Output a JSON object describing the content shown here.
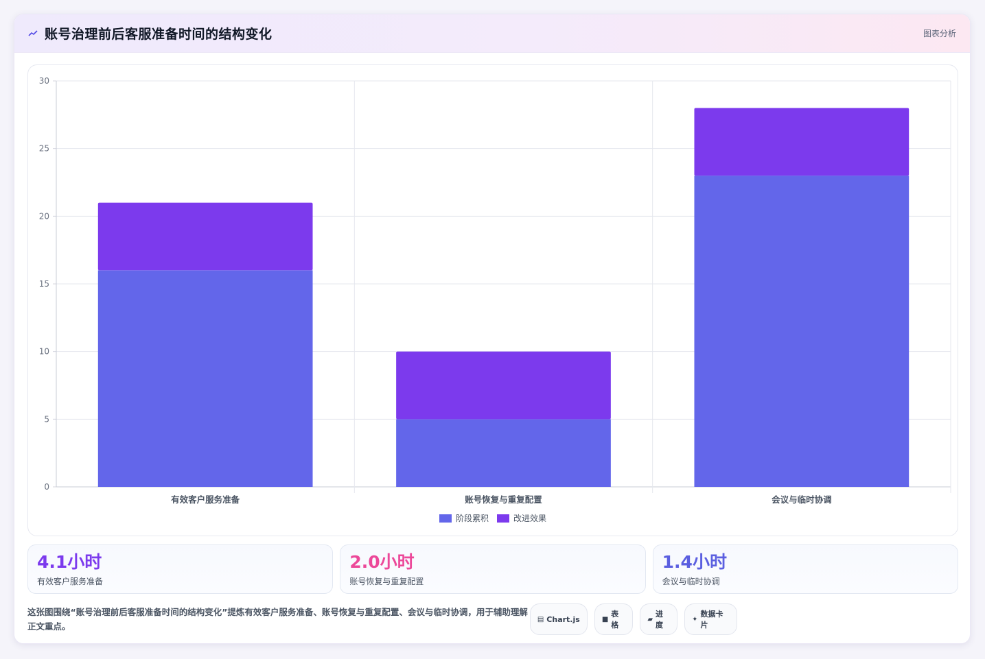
{
  "header": {
    "title": "账号治理前后客服准备时间的结构变化",
    "tag": "图表分析"
  },
  "chart_data": {
    "type": "bar",
    "stacked": true,
    "categories": [
      "有效客户服务准备",
      "账号恢复与重复配置",
      "会议与临时协调"
    ],
    "series": [
      {
        "name": "阶段累积",
        "values": [
          16,
          5,
          23
        ],
        "color": "#6366ea"
      },
      {
        "name": "改进效果",
        "values": [
          5,
          5,
          5
        ],
        "color": "#7c3aed"
      }
    ],
    "ylim": [
      0,
      30
    ],
    "yticks": [
      0,
      5,
      10,
      15,
      20,
      25,
      30
    ],
    "grid": true,
    "legend": "bottom"
  },
  "stats": [
    {
      "value": "4.1小时",
      "label": "有效客户服务准备",
      "color": "#7c3aed"
    },
    {
      "value": "2.0小时",
      "label": "账号恢复与重复配置",
      "color": "#ec4899"
    },
    {
      "value": "1.4小时",
      "label": "会议与临时协调",
      "color": "#5b5fe0"
    }
  ],
  "footer": {
    "description": "这张图围绕“账号治理前后客服准备时间的结构变化”提炼有效客户服务准备、账号恢复与重复配置、会议与临时协调，用于辅助理解正文重点。",
    "chips": [
      {
        "icon": "▤",
        "label": "Chart.js"
      },
      {
        "icon": "■",
        "label": "表格"
      },
      {
        "icon": "▰",
        "label": "进度"
      },
      {
        "icon": "✦",
        "label": "数据卡片"
      }
    ]
  }
}
